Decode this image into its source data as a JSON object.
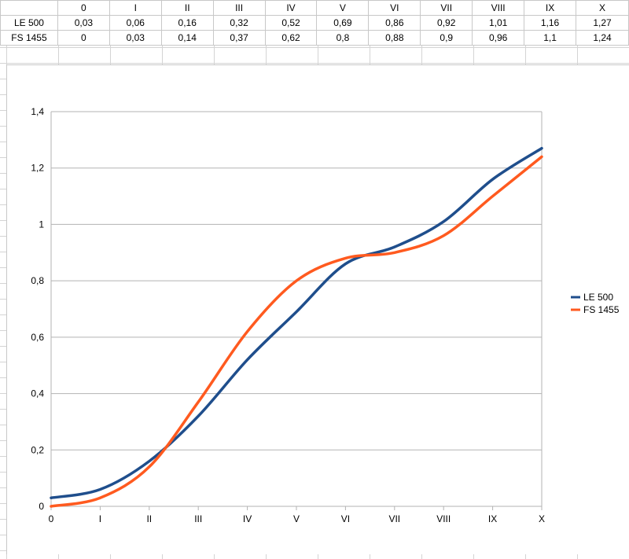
{
  "table": {
    "header": [
      "",
      "0",
      "I",
      "II",
      "III",
      "IV",
      "V",
      "VI",
      "VII",
      "VIII",
      "IX",
      "X"
    ],
    "rows": [
      {
        "label": "LE 500",
        "cells": [
          "0,03",
          "0,06",
          "0,16",
          "0,32",
          "0,52",
          "0,69",
          "0,86",
          "0,92",
          "1,01",
          "1,16",
          "1,27"
        ]
      },
      {
        "label": "FS 1455",
        "cells": [
          "0",
          "0,03",
          "0,14",
          "0,37",
          "0,62",
          "0,8",
          "0,88",
          "0,9",
          "0,96",
          "1,1",
          "1,24"
        ]
      }
    ]
  },
  "chart_data": {
    "type": "line",
    "categories": [
      "0",
      "I",
      "II",
      "III",
      "IV",
      "V",
      "VI",
      "VII",
      "VIII",
      "IX",
      "X"
    ],
    "series": [
      {
        "name": "LE 500",
        "color": "#1f4e8c",
        "values": [
          0.03,
          0.06,
          0.16,
          0.32,
          0.52,
          0.69,
          0.86,
          0.92,
          1.01,
          1.16,
          1.27
        ]
      },
      {
        "name": "FS 1455",
        "color": "#ff5a1f",
        "values": [
          0,
          0.03,
          0.14,
          0.37,
          0.62,
          0.8,
          0.88,
          0.9,
          0.96,
          1.1,
          1.24
        ]
      }
    ],
    "ylim": [
      0,
      1.4
    ],
    "yticks": [
      0,
      0.2,
      0.4,
      0.6,
      0.8,
      1,
      1.2,
      1.4
    ],
    "ytick_labels": [
      "0",
      "0,2",
      "0,4",
      "0,6",
      "0,8",
      "1",
      "1,2",
      "1,4"
    ],
    "grid": "horizontal",
    "legend_position": "right",
    "smooth": true
  }
}
